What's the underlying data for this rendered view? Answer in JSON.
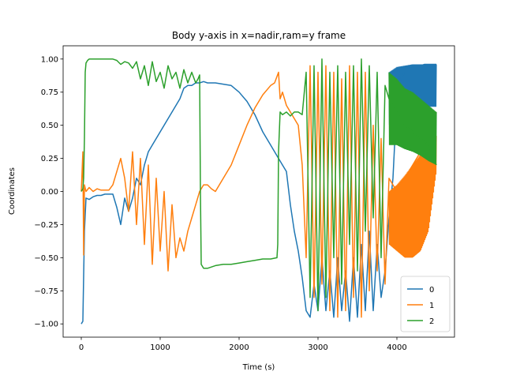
{
  "chart_data": {
    "type": "line",
    "title": "Body y-axis in x=nadir,ram=y frame",
    "xlabel": "Time (s)",
    "ylabel": "Coordinates",
    "xlim": [
      -230,
      4730
    ],
    "ylim": [
      -1.1,
      1.1
    ],
    "xticks": [
      0,
      1000,
      2000,
      3000,
      4000
    ],
    "xtick_labels": [
      "0",
      "1000",
      "2000",
      "3000",
      "4000"
    ],
    "yticks": [
      -1.0,
      -0.75,
      -0.5,
      -0.25,
      0.0,
      0.25,
      0.5,
      0.75,
      1.0
    ],
    "ytick_labels": [
      "−1.00",
      "−0.75",
      "−0.50",
      "−0.25",
      "0.00",
      "0.25",
      "0.50",
      "0.75",
      "1.00"
    ],
    "grid": false,
    "legend_position": "lower-right",
    "series": [
      {
        "name": "0",
        "color": "#1f77b4",
        "x": [
          0,
          20,
          40,
          60,
          100,
          150,
          200,
          250,
          300,
          350,
          400,
          450,
          500,
          550,
          600,
          650,
          700,
          750,
          800,
          850,
          900,
          950,
          1000,
          1050,
          1100,
          1150,
          1200,
          1250,
          1300,
          1350,
          1400,
          1450,
          1500,
          1550,
          1600,
          1700,
          1800,
          1900,
          2000,
          2100,
          2200,
          2300,
          2400,
          2500,
          2550,
          2600,
          2650,
          2700,
          2750,
          2800,
          2850,
          2900,
          2950,
          3000,
          3050,
          3100,
          3150,
          3200,
          3250,
          3300,
          3350,
          3400,
          3450,
          3500,
          3550,
          3600,
          3650,
          3700,
          3750,
          3800,
          3850,
          3900,
          3950,
          4000,
          4050,
          4100,
          4150,
          4200,
          4250,
          4300,
          4350,
          4400,
          4450,
          4500
        ],
        "y": [
          -1.0,
          -0.98,
          -0.3,
          -0.05,
          -0.06,
          -0.04,
          -0.03,
          -0.03,
          -0.02,
          -0.02,
          -0.02,
          -0.12,
          -0.25,
          -0.05,
          -0.15,
          -0.05,
          0.1,
          0.05,
          0.2,
          0.3,
          0.35,
          0.4,
          0.45,
          0.5,
          0.55,
          0.6,
          0.65,
          0.7,
          0.78,
          0.8,
          0.8,
          0.82,
          0.82,
          0.83,
          0.82,
          0.82,
          0.81,
          0.8,
          0.75,
          0.68,
          0.58,
          0.45,
          0.35,
          0.25,
          0.2,
          0.15,
          -0.1,
          -0.3,
          -0.45,
          -0.65,
          -0.9,
          -0.95,
          -0.7,
          -0.9,
          -0.5,
          -0.9,
          -0.6,
          -0.95,
          -0.5,
          -0.9,
          -0.6,
          -0.98,
          -0.5,
          -0.95,
          -0.4,
          -0.9,
          -0.3,
          -0.9,
          -0.4,
          -0.8,
          -0.6,
          -0.2,
          0.1,
          0.7,
          0.85,
          0.9,
          0.93,
          0.95,
          0.95,
          0.95,
          0.96,
          0.96,
          0.96,
          0.96
        ],
        "envelope_low": [],
        "band": {
          "x": [
            3900,
            4000,
            4100,
            4200,
            4300,
            4400,
            4500
          ],
          "upper": [
            0.9,
            0.94,
            0.95,
            0.96,
            0.96,
            0.96,
            0.96
          ],
          "lower": [
            0.5,
            0.58,
            0.62,
            0.63,
            0.64,
            0.64,
            0.64
          ]
        }
      },
      {
        "name": "1",
        "color": "#ff7f0e",
        "x": [
          0,
          20,
          30,
          40,
          60,
          100,
          150,
          200,
          250,
          300,
          350,
          400,
          450,
          500,
          550,
          600,
          650,
          700,
          750,
          800,
          850,
          900,
          950,
          1000,
          1050,
          1100,
          1150,
          1200,
          1250,
          1300,
          1350,
          1400,
          1450,
          1500,
          1550,
          1600,
          1650,
          1700,
          1800,
          1900,
          2000,
          2100,
          2200,
          2300,
          2400,
          2450,
          2500,
          2520,
          2550,
          2600,
          2650,
          2700,
          2750,
          2800,
          2850,
          2900,
          2950,
          3000,
          3050,
          3100,
          3150,
          3200,
          3250,
          3300,
          3350,
          3400,
          3450,
          3500,
          3550,
          3600,
          3650,
          3700,
          3750,
          3800,
          3850,
          3900,
          4000,
          4100,
          4200,
          4300,
          4400,
          4500
        ],
        "y": [
          0.0,
          0.3,
          -0.48,
          0.05,
          0.0,
          0.03,
          0.0,
          0.02,
          0.01,
          0.01,
          0.01,
          0.05,
          0.15,
          0.25,
          0.1,
          -0.15,
          0.3,
          -0.25,
          0.25,
          -0.4,
          0.2,
          -0.55,
          0.1,
          -0.45,
          0.0,
          -0.6,
          -0.1,
          -0.5,
          -0.35,
          -0.45,
          -0.3,
          -0.2,
          -0.1,
          0.0,
          0.05,
          0.05,
          0.02,
          0.0,
          0.1,
          0.2,
          0.35,
          0.5,
          0.63,
          0.73,
          0.8,
          0.82,
          0.9,
          0.7,
          0.75,
          0.65,
          0.6,
          0.55,
          0.5,
          0.2,
          -0.5,
          0.95,
          -0.8,
          0.9,
          -0.7,
          0.95,
          -0.9,
          0.9,
          -0.95,
          0.85,
          -0.9,
          0.95,
          -0.8,
          0.9,
          -0.95,
          0.9,
          -0.75,
          0.5,
          -0.6,
          0.4,
          -0.7,
          0.1,
          0.0,
          0.1,
          0.2,
          0.3,
          0.35,
          0.4
        ],
        "band": {
          "x": [
            3900,
            4000,
            4100,
            4200,
            4300,
            4400,
            4500
          ],
          "upper": [
            0.0,
            0.05,
            0.12,
            0.2,
            0.28,
            0.35,
            0.42
          ],
          "lower": [
            -0.4,
            -0.45,
            -0.5,
            -0.5,
            -0.45,
            -0.3,
            0.15
          ]
        }
      },
      {
        "name": "2",
        "color": "#2ca02c",
        "x": [
          0,
          20,
          30,
          40,
          50,
          60,
          80,
          100,
          200,
          300,
          400,
          450,
          500,
          550,
          600,
          650,
          700,
          750,
          800,
          850,
          900,
          950,
          1000,
          1050,
          1100,
          1150,
          1200,
          1250,
          1300,
          1350,
          1400,
          1450,
          1480,
          1500,
          1510,
          1520,
          1550,
          1600,
          1700,
          1800,
          1900,
          2000,
          2100,
          2200,
          2300,
          2400,
          2480,
          2490,
          2500,
          2520,
          2550,
          2600,
          2650,
          2700,
          2750,
          2800,
          2850,
          2900,
          2950,
          3000,
          3050,
          3100,
          3150,
          3200,
          3250,
          3300,
          3350,
          3400,
          3450,
          3500,
          3550,
          3600,
          3650,
          3700,
          3750,
          3800,
          3850,
          3900,
          4000,
          4100,
          4200,
          4300,
          4400,
          4500
        ],
        "y": [
          0.0,
          0.02,
          0.1,
          0.4,
          0.9,
          0.97,
          0.99,
          1.0,
          1.0,
          1.0,
          1.0,
          0.99,
          0.96,
          0.98,
          0.97,
          0.93,
          0.98,
          0.85,
          0.95,
          0.8,
          0.98,
          0.83,
          0.9,
          0.78,
          0.95,
          0.85,
          0.9,
          0.78,
          0.92,
          0.82,
          0.9,
          0.82,
          0.85,
          0.88,
          0.0,
          -0.55,
          -0.58,
          -0.58,
          -0.56,
          -0.55,
          -0.55,
          -0.54,
          -0.53,
          -0.52,
          -0.51,
          -0.51,
          -0.5,
          -0.4,
          0.3,
          0.6,
          0.58,
          0.6,
          0.57,
          0.6,
          0.6,
          0.58,
          0.9,
          -0.8,
          0.95,
          -0.9,
          1.0,
          -0.8,
          0.9,
          -0.5,
          0.95,
          -0.7,
          0.9,
          -0.4,
          0.95,
          -0.6,
          1.0,
          -0.3,
          0.95,
          -0.2,
          0.9,
          -0.5,
          0.8,
          0.7,
          0.6,
          0.5,
          0.45,
          0.4,
          0.35,
          0.2
        ],
        "band": {
          "x": [
            3900,
            4000,
            4100,
            4200,
            4300,
            4400,
            4500
          ],
          "upper": [
            0.9,
            0.85,
            0.78,
            0.75,
            0.7,
            0.65,
            0.6
          ],
          "lower": [
            0.35,
            0.35,
            0.32,
            0.3,
            0.27,
            0.23,
            0.2
          ]
        }
      }
    ]
  }
}
